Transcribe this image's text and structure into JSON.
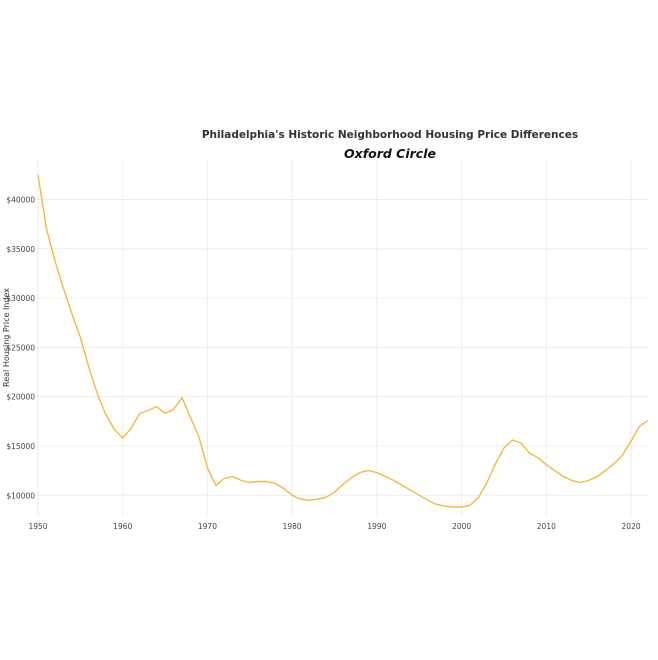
{
  "chart_data": {
    "type": "line",
    "title": "Philadelphia's Historic Neighborhood Housing Price Differences",
    "subtitle": "Oxford Circle",
    "xlabel": "",
    "ylabel": "Real Housing Price Index",
    "xlim": [
      1950,
      2022
    ],
    "ylim": [
      8000,
      44000
    ],
    "x_ticks": [
      1950,
      1960,
      1970,
      1980,
      1990,
      2000,
      2010,
      2020
    ],
    "y_ticks": [
      10000,
      15000,
      20000,
      25000,
      30000,
      35000,
      40000
    ],
    "y_tick_labels": [
      "$10000",
      "$15000",
      "$20000",
      "$25000",
      "$30000",
      "$35000",
      "$40000"
    ],
    "grid": true,
    "line_color": "#f5b83d",
    "series": [
      {
        "x": [
          1950,
          1951,
          1952,
          1953,
          1954,
          1955,
          1956,
          1957,
          1958,
          1959,
          1960,
          1961,
          1962,
          1963,
          1964,
          1965,
          1966,
          1967,
          1968,
          1969,
          1970,
          1971,
          1972,
          1973,
          1974,
          1975,
          1976,
          1977,
          1978,
          1979,
          1980,
          1981,
          1982,
          1983,
          1984,
          1985,
          1986,
          1987,
          1988,
          1989,
          1990,
          1991,
          1992,
          1993,
          1994,
          1995,
          1996,
          1997,
          1998,
          1999,
          2000,
          2001,
          2002,
          2003,
          2004,
          2005,
          2006,
          2007,
          2008,
          2009,
          2010,
          2011,
          2012,
          2013,
          2014,
          2015,
          2016,
          2017,
          2018,
          2019,
          2020,
          2021,
          2022
        ],
        "values": [
          42500,
          37000,
          33800,
          31000,
          28400,
          26000,
          23000,
          20300,
          18200,
          16700,
          15800,
          16800,
          18300,
          18600,
          19000,
          18300,
          18700,
          19900,
          17900,
          15900,
          12800,
          11000,
          11700,
          11900,
          11500,
          11300,
          11400,
          11400,
          11200,
          10700,
          10000,
          9600,
          9500,
          9600,
          9800,
          10300,
          11100,
          11800,
          12300,
          12500,
          12300,
          11900,
          11500,
          11000,
          10500,
          10000,
          9500,
          9100,
          8900,
          8800,
          8800,
          9000,
          9800,
          11300,
          13200,
          14800,
          15600,
          15300,
          14300,
          13800,
          13100,
          12500,
          11900,
          11500,
          11300,
          11500,
          11900,
          12500,
          13200,
          14100,
          15500,
          17000,
          17600
        ]
      }
    ]
  }
}
